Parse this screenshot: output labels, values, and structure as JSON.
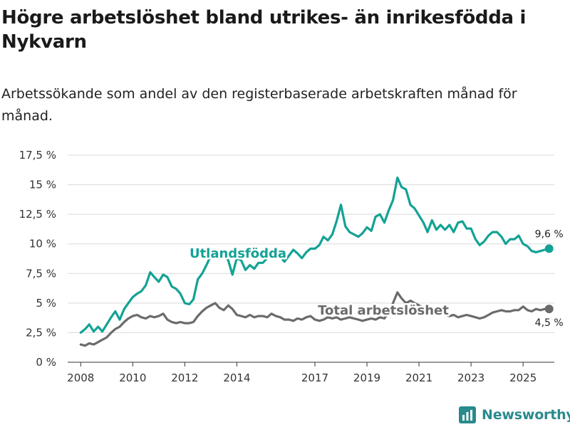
{
  "title": "Högre arbetslöshet bland utrikes- än inrikesfödda i Nykvarn",
  "subtitle": "Arbetssökande som andel av den registerbaserade arbetskraften månad för månad.",
  "brand": "Newsworthy",
  "colors": {
    "foreign": "#13a294",
    "total": "#6b6b6b",
    "grid": "#d9d9d9",
    "brand": "#2a8a8e"
  },
  "chart_data": {
    "type": "line",
    "title": "Högre arbetslöshet bland utrikes- än inrikesfödda i Nykvarn",
    "xlabel": "",
    "ylabel": "",
    "xlim": [
      2007.5,
      2026.2
    ],
    "ylim": [
      0,
      17.5
    ],
    "y_ticks": [
      0,
      2.5,
      5,
      7.5,
      10,
      12.5,
      15,
      17.5
    ],
    "y_tick_labels": [
      "0 %",
      "2,5 %",
      "5 %",
      "7,5 %",
      "10 %",
      "12,5 %",
      "15 %",
      "17,5 %"
    ],
    "x_ticks": [
      2008,
      2010,
      2012,
      2014,
      2017,
      2019,
      2021,
      2023,
      2025
    ],
    "x_tick_labels": [
      "2008",
      "2010",
      "2012",
      "2014",
      "2017",
      "2019",
      "2021",
      "2023",
      "2025"
    ],
    "series": [
      {
        "name": "Utlandsfödda",
        "label": "Utlandsfödda",
        "end_label": "9,6 %",
        "x": [
          2008.0,
          2008.17,
          2008.33,
          2008.5,
          2008.67,
          2008.83,
          2009.0,
          2009.17,
          2009.33,
          2009.5,
          2009.67,
          2009.83,
          2010.0,
          2010.17,
          2010.33,
          2010.5,
          2010.67,
          2010.83,
          2011.0,
          2011.17,
          2011.33,
          2011.5,
          2011.67,
          2011.83,
          2012.0,
          2012.17,
          2012.33,
          2012.5,
          2012.67,
          2012.83,
          2013.0,
          2013.17,
          2013.33,
          2013.5,
          2013.67,
          2013.83,
          2014.0,
          2014.17,
          2014.33,
          2014.5,
          2014.67,
          2014.83,
          2015.0,
          2015.17,
          2015.33,
          2015.5,
          2015.67,
          2015.83,
          2016.0,
          2016.17,
          2016.33,
          2016.5,
          2016.67,
          2016.83,
          2017.0,
          2017.17,
          2017.33,
          2017.5,
          2017.67,
          2017.83,
          2018.0,
          2018.17,
          2018.33,
          2018.5,
          2018.67,
          2018.83,
          2019.0,
          2019.17,
          2019.33,
          2019.5,
          2019.67,
          2019.83,
          2020.0,
          2020.17,
          2020.33,
          2020.5,
          2020.67,
          2020.83,
          2021.0,
          2021.17,
          2021.33,
          2021.5,
          2021.67,
          2021.83,
          2022.0,
          2022.17,
          2022.33,
          2022.5,
          2022.67,
          2022.83,
          2023.0,
          2023.17,
          2023.33,
          2023.5,
          2023.67,
          2023.83,
          2024.0,
          2024.17,
          2024.33,
          2024.5,
          2024.67,
          2024.83,
          2025.0,
          2025.17,
          2025.33,
          2025.5,
          2025.67,
          2025.83,
          2026.0
        ],
        "values": [
          2.5,
          2.8,
          3.2,
          2.6,
          3.0,
          2.6,
          3.2,
          3.8,
          4.3,
          3.6,
          4.5,
          5.0,
          5.5,
          5.8,
          6.0,
          6.5,
          7.6,
          7.2,
          6.8,
          7.4,
          7.2,
          6.4,
          6.2,
          5.8,
          5.0,
          4.9,
          5.3,
          7.0,
          7.5,
          8.2,
          9.0,
          9.4,
          8.8,
          9.2,
          8.6,
          7.4,
          8.8,
          8.6,
          7.8,
          8.2,
          7.9,
          8.4,
          8.4,
          8.8,
          9.4,
          9.7,
          8.9,
          8.5,
          9.0,
          9.5,
          9.2,
          8.8,
          9.3,
          9.6,
          9.6,
          9.9,
          10.6,
          10.3,
          10.8,
          11.9,
          13.3,
          11.5,
          11.0,
          10.8,
          10.6,
          10.9,
          11.4,
          11.1,
          12.3,
          12.5,
          11.8,
          12.8,
          13.7,
          15.6,
          14.8,
          14.6,
          13.3,
          13.0,
          12.4,
          11.8,
          11.0,
          12.0,
          11.2,
          11.6,
          11.2,
          11.6,
          11.0,
          11.8,
          11.9,
          11.3,
          11.3,
          10.4,
          9.9,
          10.2,
          10.7,
          11.0,
          11.0,
          10.6,
          10.0,
          10.4,
          10.4,
          10.7,
          10.0,
          9.8,
          9.4,
          9.3,
          9.4,
          9.5,
          9.6
        ]
      },
      {
        "name": "Total arbetslöshet",
        "label": "Total arbetslöshet",
        "end_label": "4,5 %",
        "x": [
          2008.0,
          2008.17,
          2008.33,
          2008.5,
          2008.67,
          2008.83,
          2009.0,
          2009.17,
          2009.33,
          2009.5,
          2009.67,
          2009.83,
          2010.0,
          2010.17,
          2010.33,
          2010.5,
          2010.67,
          2010.83,
          2011.0,
          2011.17,
          2011.33,
          2011.5,
          2011.67,
          2011.83,
          2012.0,
          2012.17,
          2012.33,
          2012.5,
          2012.67,
          2012.83,
          2013.0,
          2013.17,
          2013.33,
          2013.5,
          2013.67,
          2013.83,
          2014.0,
          2014.17,
          2014.33,
          2014.5,
          2014.67,
          2014.83,
          2015.0,
          2015.17,
          2015.33,
          2015.5,
          2015.67,
          2015.83,
          2016.0,
          2016.17,
          2016.33,
          2016.5,
          2016.67,
          2016.83,
          2017.0,
          2017.17,
          2017.33,
          2017.5,
          2017.67,
          2017.83,
          2018.0,
          2018.17,
          2018.33,
          2018.5,
          2018.67,
          2018.83,
          2019.0,
          2019.17,
          2019.33,
          2019.5,
          2019.67,
          2019.83,
          2020.0,
          2020.17,
          2020.33,
          2020.5,
          2020.67,
          2020.83,
          2021.0,
          2021.17,
          2021.33,
          2021.5,
          2021.67,
          2021.83,
          2022.0,
          2022.17,
          2022.33,
          2022.5,
          2022.67,
          2022.83,
          2023.0,
          2023.17,
          2023.33,
          2023.5,
          2023.67,
          2023.83,
          2024.0,
          2024.17,
          2024.33,
          2024.5,
          2024.67,
          2024.83,
          2025.0,
          2025.17,
          2025.33,
          2025.5,
          2025.67,
          2025.83,
          2026.0
        ],
        "values": [
          1.5,
          1.4,
          1.6,
          1.5,
          1.7,
          1.9,
          2.1,
          2.5,
          2.8,
          3.0,
          3.4,
          3.7,
          3.9,
          4.0,
          3.8,
          3.7,
          3.9,
          3.8,
          3.9,
          4.1,
          3.6,
          3.4,
          3.3,
          3.4,
          3.3,
          3.3,
          3.4,
          3.9,
          4.3,
          4.6,
          4.8,
          5.0,
          4.6,
          4.4,
          4.8,
          4.5,
          4.0,
          3.9,
          3.8,
          4.0,
          3.8,
          3.9,
          3.9,
          3.8,
          4.1,
          3.9,
          3.8,
          3.6,
          3.6,
          3.5,
          3.7,
          3.6,
          3.8,
          3.9,
          3.6,
          3.5,
          3.6,
          3.8,
          3.7,
          3.8,
          3.6,
          3.7,
          3.8,
          3.7,
          3.6,
          3.5,
          3.6,
          3.7,
          3.6,
          3.8,
          3.7,
          4.2,
          5.0,
          5.9,
          5.4,
          5.0,
          5.2,
          5.0,
          4.8,
          4.6,
          4.6,
          4.4,
          4.2,
          4.2,
          4.0,
          3.9,
          4.0,
          3.8,
          3.9,
          4.0,
          3.9,
          3.8,
          3.7,
          3.8,
          4.0,
          4.2,
          4.3,
          4.4,
          4.3,
          4.3,
          4.4,
          4.4,
          4.7,
          4.4,
          4.3,
          4.5,
          4.4,
          4.5,
          4.5
        ]
      }
    ]
  }
}
